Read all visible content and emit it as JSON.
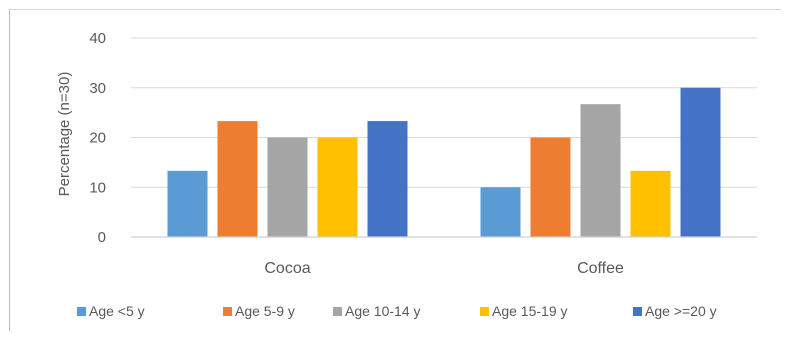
{
  "chart_data": {
    "type": "bar",
    "title": "",
    "xlabel": "",
    "ylabel": "Percentage (n=30)",
    "ylim": [
      0,
      40
    ],
    "yticks": [
      0,
      10,
      20,
      30,
      40
    ],
    "grid": true,
    "legend_position": "bottom",
    "categories": [
      "Cocoa",
      "Coffee"
    ],
    "series": [
      {
        "name": "Age <5 y",
        "color": "#5b9bd5",
        "values": [
          13.3,
          10.0
        ]
      },
      {
        "name": "Age 5-9 y",
        "color": "#ed7d31",
        "values": [
          23.3,
          20.0
        ]
      },
      {
        "name": "Age 10-14 y",
        "color": "#a5a5a5",
        "values": [
          20.0,
          26.7
        ]
      },
      {
        "name": "Age 15-19 y",
        "color": "#ffc000",
        "values": [
          20.0,
          13.3
        ]
      },
      {
        "name": "Age >=20 y",
        "color": "#4472c4",
        "values": [
          23.3,
          30.0
        ]
      }
    ]
  }
}
